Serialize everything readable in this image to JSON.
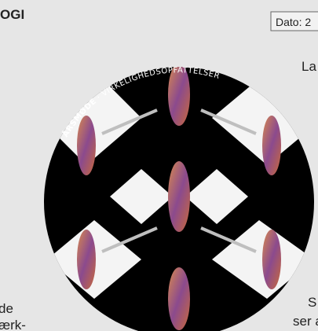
{
  "header": {
    "title": "OGI",
    "date": "Dato: 2"
  },
  "circle_text": {
    "event": "ÅRSMØDE",
    "separator": "·",
    "theme": "VIRKELIGHEDSOPFATTELSER"
  },
  "body_left": [
    "de",
    "ærk-"
  ],
  "body_right": [
    "La",
    "S",
    "ser a"
  ]
}
